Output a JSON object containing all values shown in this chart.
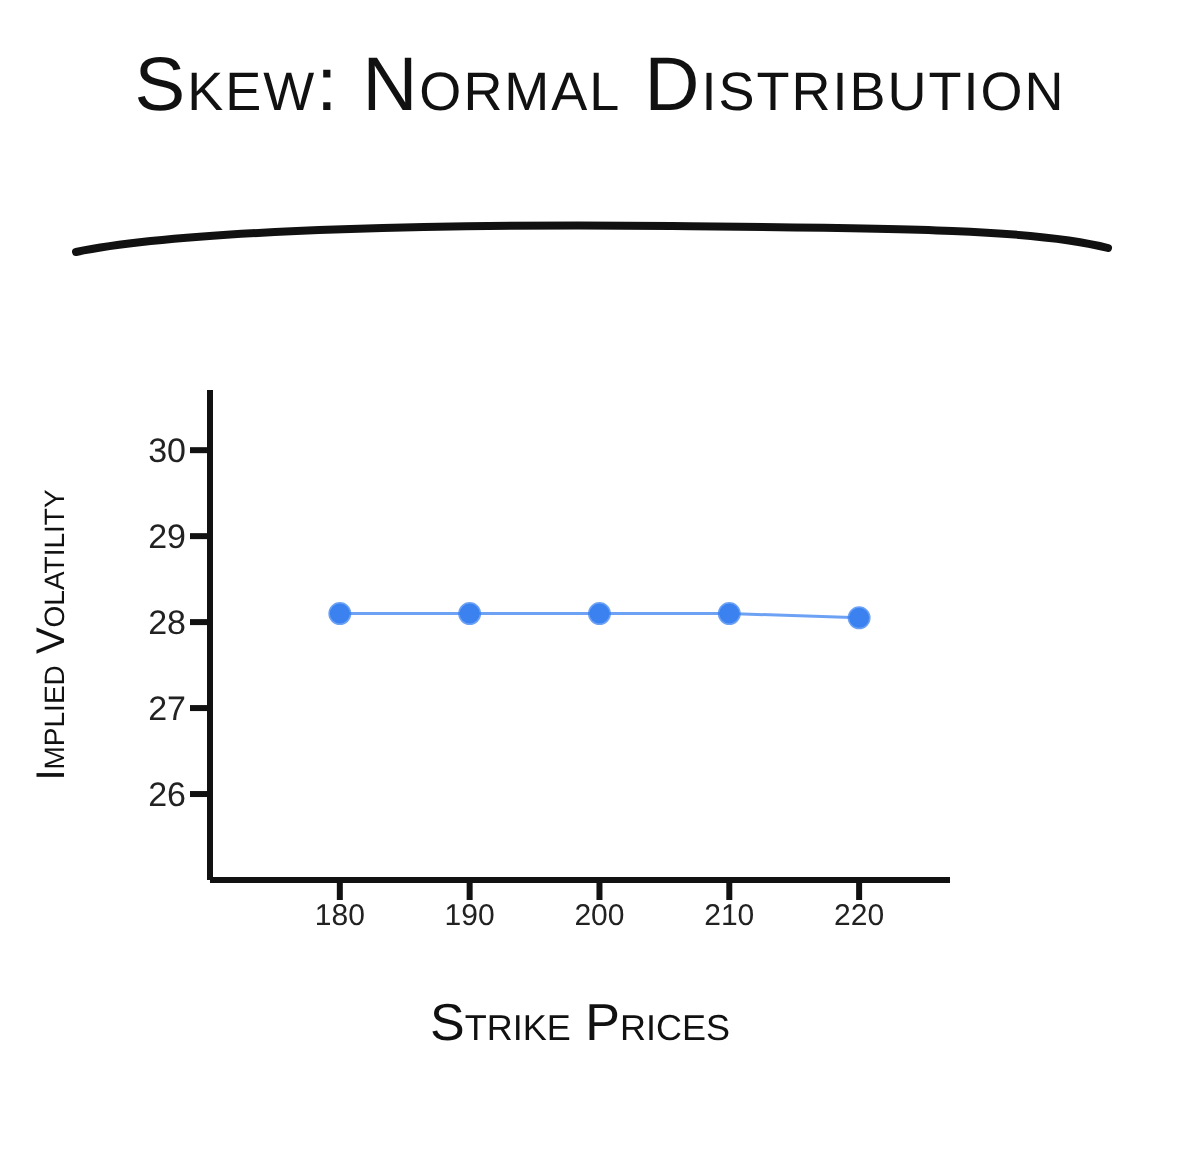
{
  "chart_data": {
    "type": "line",
    "title": "Skew: Normal Distribution",
    "xlabel": "Strike Prices",
    "ylabel": "Implied Volatility",
    "x": [
      180,
      190,
      200,
      210,
      220
    ],
    "series": [
      {
        "color": "#3b82f0",
        "values": [
          28.1,
          28.1,
          28.1,
          28.1,
          28.05
        ]
      }
    ],
    "xlim": [
      170,
      227
    ],
    "xticks": [
      180,
      190,
      200,
      210,
      220
    ],
    "ylim": [
      25,
      30.7
    ],
    "yticks": [
      26,
      27,
      28,
      29,
      30
    ],
    "grid": false,
    "legend": false,
    "marker": "circle",
    "line_style": "solid"
  }
}
